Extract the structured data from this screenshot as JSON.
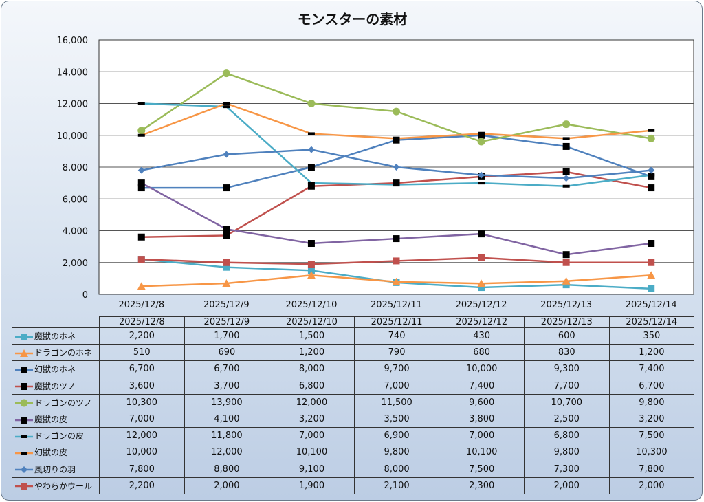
{
  "chart_data": {
    "type": "line",
    "title": "モンスターの素材",
    "categories": [
      "2025/12/8",
      "2025/12/9",
      "2025/12/10",
      "2025/12/11",
      "2025/12/12",
      "2025/12/13",
      "2025/12/14"
    ],
    "ylim": [
      0,
      16000
    ],
    "yticks": [
      "0",
      "2,000",
      "4,000",
      "6,000",
      "8,000",
      "10,000",
      "12,000",
      "14,000",
      "16,000"
    ],
    "grid": true,
    "legend": "table-bottom",
    "series": [
      {
        "name": "魔獣のホネ",
        "color": "#4bacc6",
        "marker": "square",
        "markerColor": "#4bacc6",
        "values": [
          2200,
          1700,
          1500,
          740,
          430,
          600,
          350
        ],
        "labels": [
          "2,200",
          "1,700",
          "1,500",
          "740",
          "430",
          "600",
          "350"
        ]
      },
      {
        "name": "ドラゴンのホネ",
        "color": "#f79646",
        "marker": "triangle",
        "markerColor": "#f79646",
        "values": [
          510,
          690,
          1200,
          790,
          680,
          830,
          1200
        ],
        "labels": [
          "510",
          "690",
          "1,200",
          "790",
          "680",
          "830",
          "1,200"
        ]
      },
      {
        "name": "幻獣のホネ",
        "color": "#4f81bd",
        "marker": "square",
        "markerColor": "#000000",
        "values": [
          6700,
          6700,
          8000,
          9700,
          10000,
          9300,
          7400
        ],
        "labels": [
          "6,700",
          "6,700",
          "8,000",
          "9,700",
          "10,000",
          "9,300",
          "7,400"
        ]
      },
      {
        "name": "魔獣のツノ",
        "color": "#c0504d",
        "marker": "square",
        "markerColor": "#000000",
        "values": [
          3600,
          3700,
          6800,
          7000,
          7400,
          7700,
          6700
        ],
        "labels": [
          "3,600",
          "3,700",
          "6,800",
          "7,000",
          "7,400",
          "7,700",
          "6,700"
        ]
      },
      {
        "name": "ドラゴンのツノ",
        "color": "#9bbb59",
        "marker": "circle",
        "markerColor": "#9bbb59",
        "values": [
          10300,
          13900,
          12000,
          11500,
          9600,
          10700,
          9800
        ],
        "labels": [
          "10,300",
          "13,900",
          "12,000",
          "11,500",
          "9,600",
          "10,700",
          "9,800"
        ]
      },
      {
        "name": "魔獣の皮",
        "color": "#8064a2",
        "marker": "square",
        "markerColor": "#000000",
        "values": [
          7000,
          4100,
          3200,
          3500,
          3800,
          2500,
          3200
        ],
        "labels": [
          "7,000",
          "4,100",
          "3,200",
          "3,500",
          "3,800",
          "2,500",
          "3,200"
        ]
      },
      {
        "name": "ドラゴンの皮",
        "color": "#4bacc6",
        "marker": "dash",
        "markerColor": "#000000",
        "values": [
          12000,
          11800,
          7000,
          6900,
          7000,
          6800,
          7500
        ],
        "labels": [
          "12,000",
          "11,800",
          "7,000",
          "6,900",
          "7,000",
          "6,800",
          "7,500"
        ]
      },
      {
        "name": "幻獣の皮",
        "color": "#f79646",
        "marker": "dash",
        "markerColor": "#000000",
        "values": [
          10000,
          12000,
          10100,
          9800,
          10100,
          9800,
          10300
        ],
        "labels": [
          "10,000",
          "12,000",
          "10,100",
          "9,800",
          "10,100",
          "9,800",
          "10,300"
        ]
      },
      {
        "name": "風切りの羽",
        "color": "#4f81bd",
        "marker": "diamond",
        "markerColor": "#4f81bd",
        "values": [
          7800,
          8800,
          9100,
          8000,
          7500,
          7300,
          7800
        ],
        "labels": [
          "7,800",
          "8,800",
          "9,100",
          "8,000",
          "7,500",
          "7,300",
          "7,800"
        ]
      },
      {
        "name": "やわらかウール",
        "color": "#c0504d",
        "marker": "square",
        "markerColor": "#c0504d",
        "values": [
          2200,
          2000,
          1900,
          2100,
          2300,
          2000,
          2000
        ],
        "labels": [
          "2,200",
          "2,000",
          "1,900",
          "2,100",
          "2,300",
          "2,000",
          "2,000"
        ]
      }
    ]
  }
}
